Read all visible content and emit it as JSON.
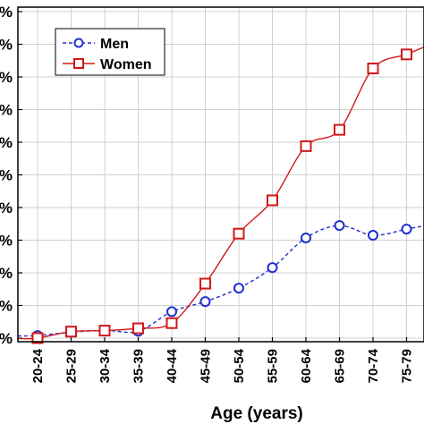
{
  "chart_data": {
    "type": "line",
    "xlabel": "Age (years)",
    "categories": [
      "20-24",
      "25-29",
      "30-34",
      "35-39",
      "40-44",
      "45-49",
      "50-54",
      "55-59",
      "60-64",
      "65-69",
      "70-74",
      "75-79"
    ],
    "y_tick_labels": [
      "%",
      "%",
      "%",
      "%",
      "%",
      "%",
      "%",
      "%",
      "%",
      "%",
      "%"
    ],
    "ylim": [
      0,
      10
    ],
    "grid": true,
    "legend_position": "top-left",
    "series": [
      {
        "name": "Men",
        "color": "#1f2fd0",
        "line_style": "dashed",
        "marker": "circle",
        "values": [
          0.08,
          0.18,
          0.24,
          0.21,
          0.81,
          1.12,
          1.53,
          2.16,
          3.07,
          3.45,
          3.15,
          3.34
        ]
      },
      {
        "name": "Women",
        "color": "#d01818",
        "line_style": "solid",
        "marker": "square",
        "values": [
          0.0,
          0.2,
          0.23,
          0.3,
          0.46,
          1.67,
          3.2,
          4.22,
          5.88,
          6.38,
          8.26,
          8.69
        ]
      }
    ]
  }
}
